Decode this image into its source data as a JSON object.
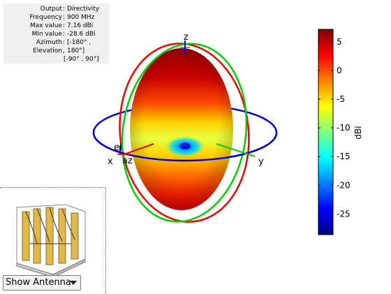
{
  "info": {
    "output_label": "Output",
    "output_value": "Directivity",
    "frequency_label": "Frequency",
    "frequency_value": "900 MHz",
    "max_label": "Max value",
    "max_value": "7.16 dBi",
    "min_label": "Min value",
    "min_value": "-28.6 dBi",
    "azimuth_label": "Azimuth",
    "azimuth_value": "[-180° ,",
    "elevation_label": "Elevation",
    "elevation_value": "180°]",
    "elevation_range": "[-90° , 90°]"
  },
  "axes": {
    "z": "z",
    "x": "x",
    "y": "y",
    "az": "az",
    "el": "el"
  },
  "colorbar": {
    "unit": "dBi",
    "ticks": [
      "5",
      "0",
      "-5",
      "-10",
      "-15",
      "-20",
      "-25"
    ],
    "tick_values": [
      5,
      0,
      -5,
      -10,
      -15,
      -20,
      -25
    ],
    "min": -28.6,
    "max": 7.16,
    "colormap": "jet"
  },
  "colors": {
    "azimuth_ring": "#0000cc",
    "elevation_ring": "#ee0000",
    "meridian_ring": "#00cc00",
    "pattern_top": "#a50000",
    "pattern_mid": "#ffdd00",
    "pattern_null": "#00a0ff"
  },
  "view_select": {
    "label": "Show Antenna"
  }
}
